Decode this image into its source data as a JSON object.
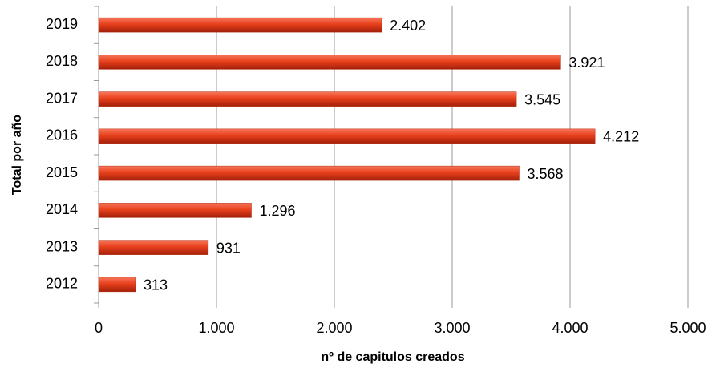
{
  "chart_data": {
    "type": "bar",
    "orientation": "horizontal",
    "ylabel": "Total por año",
    "xlabel": "nº de capitulos creados",
    "categories": [
      "2019",
      "2018",
      "2017",
      "2016",
      "2015",
      "2014",
      "2013",
      "2012"
    ],
    "values": [
      2402,
      3921,
      3545,
      4212,
      3568,
      1296,
      931,
      313
    ],
    "value_labels": [
      "2.402",
      "3.921",
      "3.545",
      "4.212",
      "3.568",
      "1.296",
      "931",
      "313"
    ],
    "color": "#e8401c",
    "xlim": [
      0,
      5000
    ],
    "xticks": [
      0,
      {
        "value": 1000,
        "label": "1.000"
      },
      {
        "value": 2000,
        "label": "2.000"
      },
      {
        "value": 3000,
        "label": "3.000"
      },
      {
        "value": 4000,
        "label": "4.000"
      },
      {
        "value": 5000,
        "label": "5.000"
      }
    ],
    "grid": true
  }
}
